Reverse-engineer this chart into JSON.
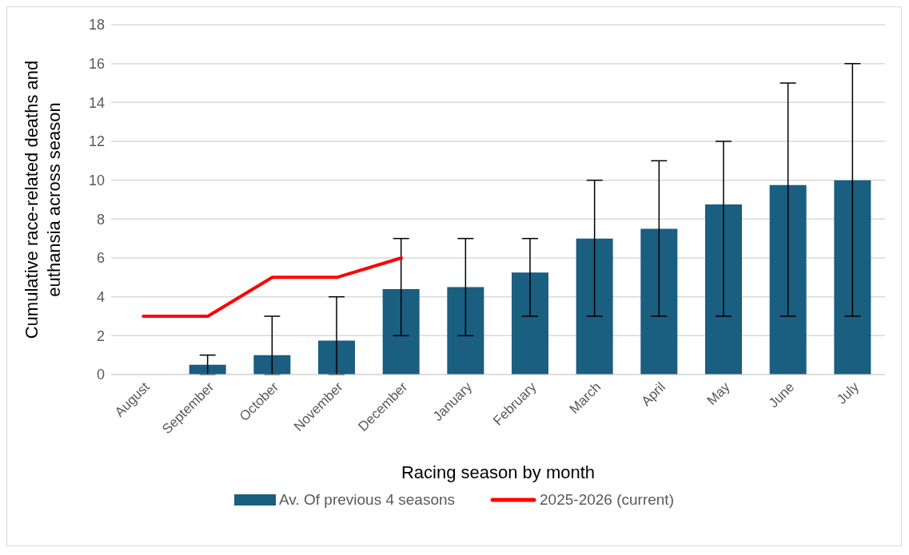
{
  "chart_data": {
    "type": "bar",
    "xlabel": "Racing season by month",
    "ylabel": "Cumulative race-related deaths and euthansia across season",
    "categories": [
      "August",
      "September",
      "October",
      "November",
      "December",
      "January",
      "February",
      "March",
      "April",
      "May",
      "June",
      "July"
    ],
    "series": [
      {
        "name": "Av. Of previous 4 seasons",
        "color": "#1a5e80",
        "values": [
          0,
          0.5,
          1,
          1.75,
          4.4,
          4.5,
          5.25,
          7,
          7.5,
          8.75,
          9.75,
          10
        ],
        "errors": [
          null,
          [
            0,
            1
          ],
          [
            0,
            3
          ],
          [
            0,
            4
          ],
          [
            2,
            7
          ],
          [
            2,
            7
          ],
          [
            3,
            7
          ],
          [
            3,
            10
          ],
          [
            3,
            11
          ],
          [
            3,
            12
          ],
          [
            3,
            15
          ],
          [
            3,
            16
          ]
        ]
      },
      {
        "name": "2025-2026 (current)",
        "type": "line",
        "color": "#ff0000",
        "values": [
          3,
          3,
          5,
          5,
          6,
          null,
          null,
          null,
          null,
          null,
          null,
          null
        ]
      }
    ],
    "ylim": [
      0,
      18
    ],
    "yticks": [
      0,
      2,
      4,
      6,
      8,
      10,
      12,
      14,
      16,
      18
    ],
    "grid": "y",
    "legend": "bottom",
    "marker": "none"
  }
}
